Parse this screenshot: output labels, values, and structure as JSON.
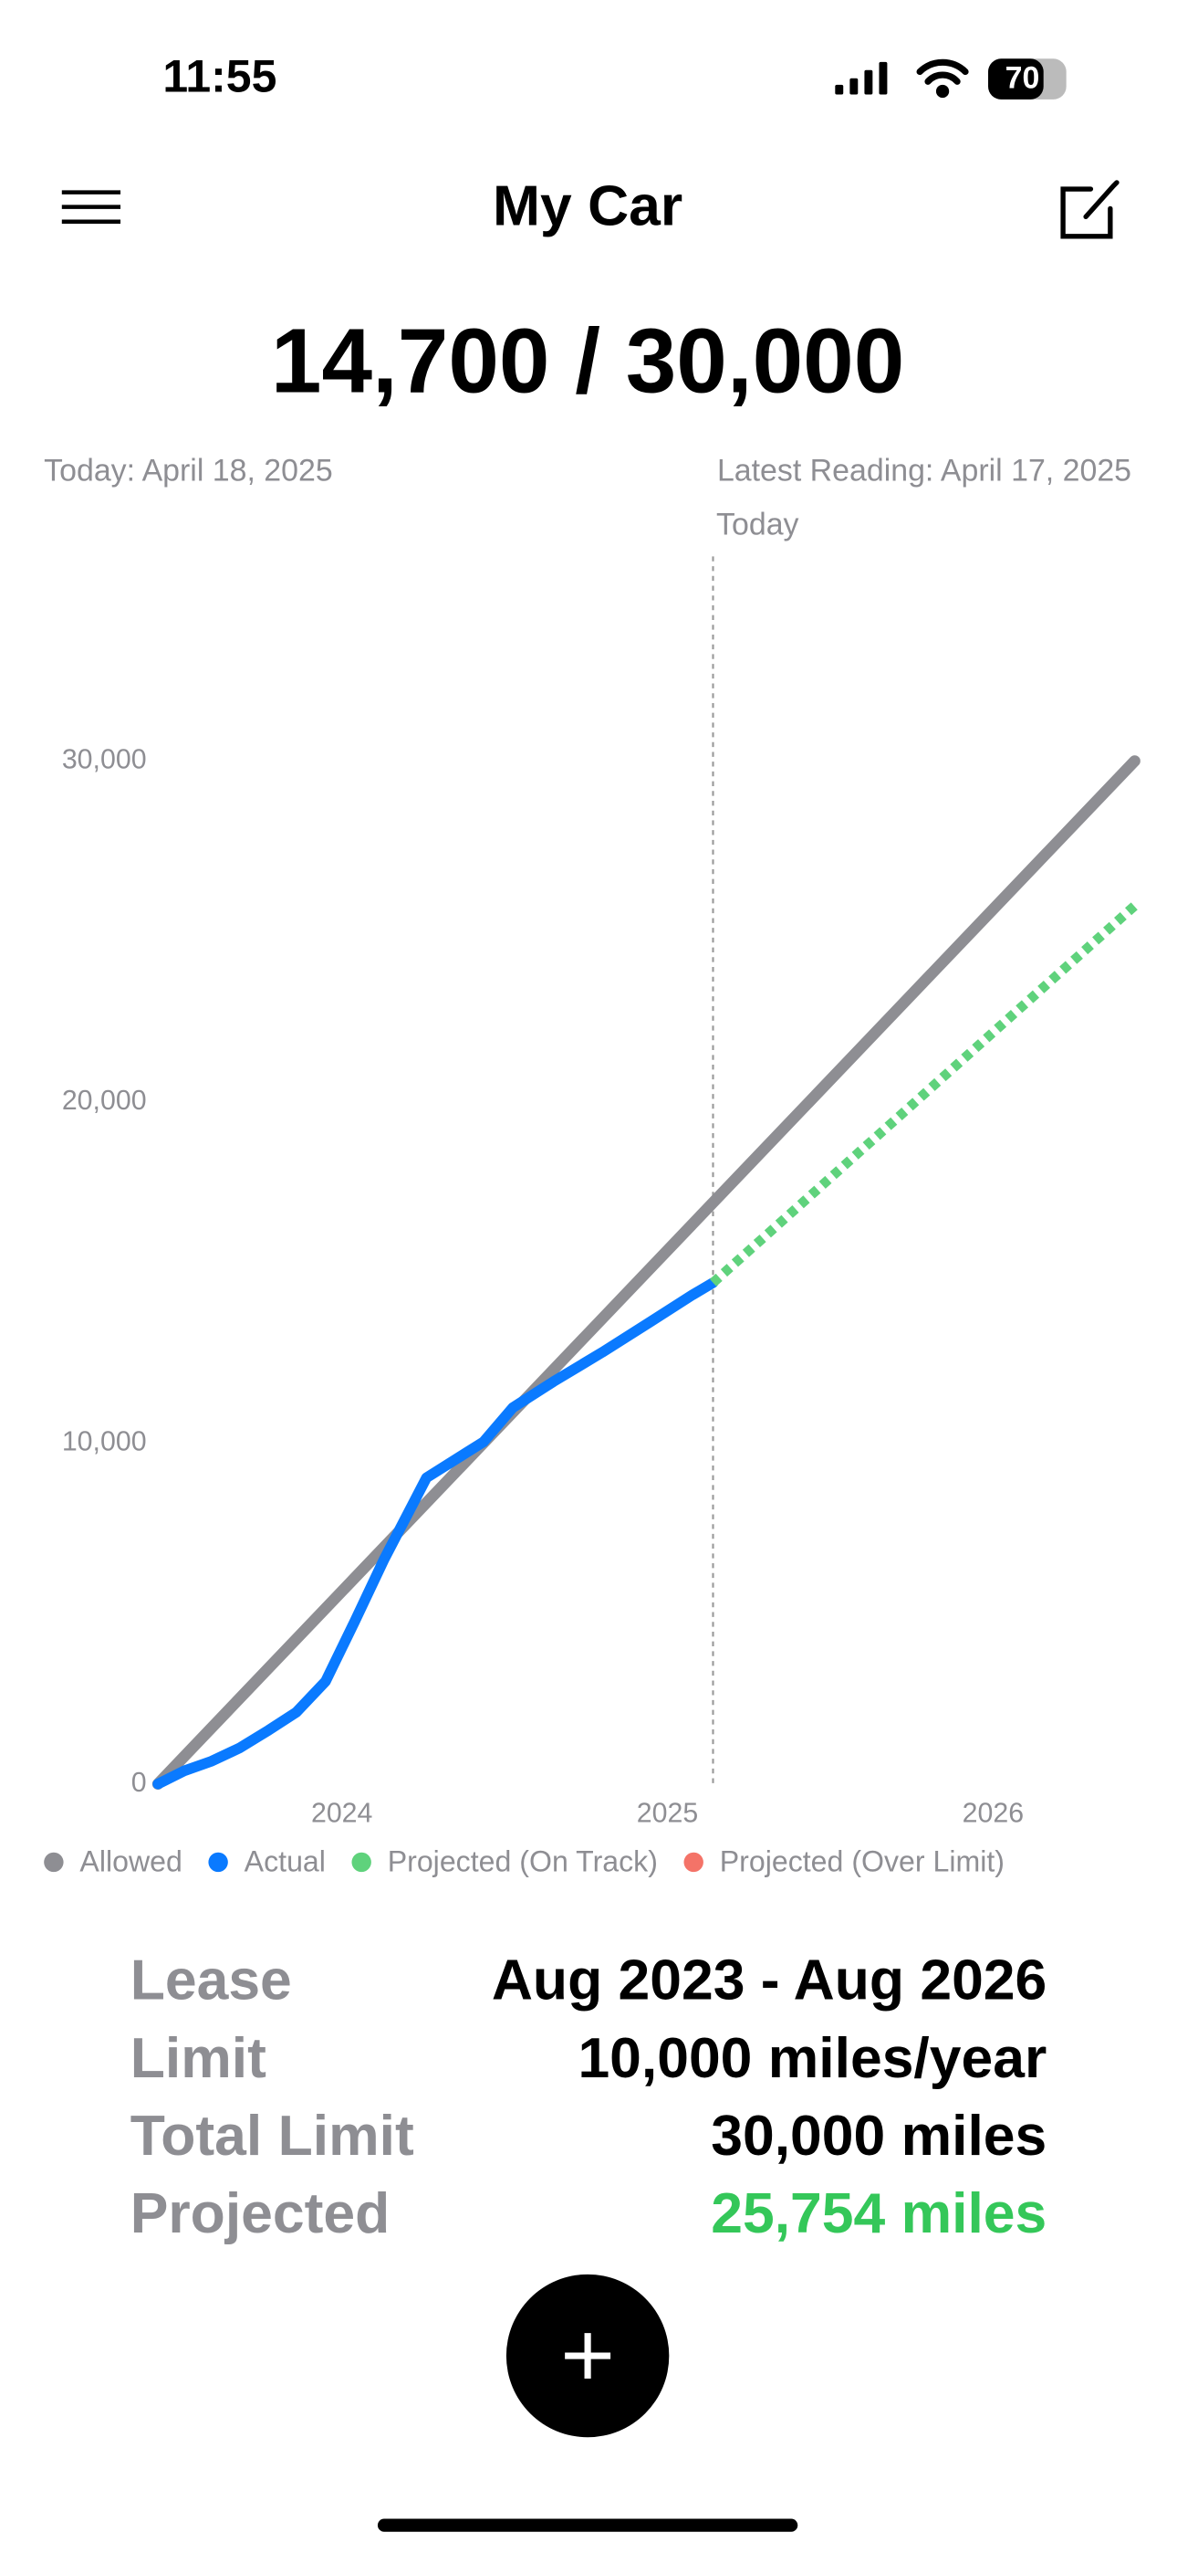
{
  "status_bar": {
    "time": "11:55",
    "battery": "70"
  },
  "header": {
    "title": "My Car"
  },
  "summary": {
    "mileage": "14,700 / 30,000",
    "today": "Today: April 18, 2025",
    "latest_reading": "Latest Reading: April 17, 2025"
  },
  "chart_data": {
    "type": "line",
    "xlim": [
      2023.435,
      2026.435
    ],
    "ylim": [
      0,
      36000
    ],
    "xticks": [
      2024,
      2025,
      2026
    ],
    "yticks": [
      0,
      {
        "value": 10000,
        "label": "10,000"
      },
      {
        "value": 20000,
        "label": "20,000"
      },
      {
        "value": 30000,
        "label": "30,000"
      }
    ],
    "grid": false,
    "annotations": [
      {
        "x": 2025.14,
        "label": "Today"
      }
    ],
    "series": [
      {
        "name": "Allowed",
        "color": "#8e8e93",
        "x": [
          2023.435,
          2026.435
        ],
        "values": [
          0,
          30000
        ]
      },
      {
        "name": "Actual",
        "color": "#0a7aff",
        "x": [
          2023.435,
          2023.515,
          2023.6,
          2023.685,
          2023.775,
          2023.86,
          2023.95,
          2024.04,
          2024.13,
          2024.26,
          2024.435,
          2024.525,
          2024.65,
          2024.8,
          2024.95,
          2025.075,
          2025.14
        ],
        "values": [
          0,
          382,
          669,
          1051,
          1577,
          2102,
          3010,
          4778,
          6594,
          8982,
          10033,
          11037,
          11801,
          12661,
          13569,
          14333,
          14700
        ]
      },
      {
        "name": "Projected (On Track)",
        "color": "#5fd27c",
        "x": [
          2025.14,
          2026.435
        ],
        "values": [
          14700,
          25754
        ]
      },
      {
        "name": "Projected (Over Limit)",
        "color": "#f47368",
        "x": [],
        "values": []
      }
    ]
  },
  "details": {
    "rows": [
      {
        "label": "Lease",
        "value": "Aug 2023 - Aug 2026"
      },
      {
        "label": "Limit",
        "value": "10,000 miles/year"
      },
      {
        "label": "Total Limit",
        "value": "30,000 miles"
      },
      {
        "label": "Projected",
        "value": "25,754 miles"
      }
    ]
  }
}
